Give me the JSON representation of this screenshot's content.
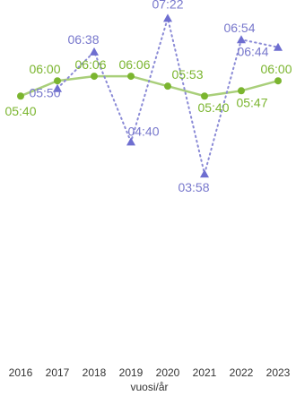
{
  "chart_data": {
    "type": "line",
    "title": "",
    "xlabel": "vuosi/år",
    "ylabel": "",
    "x": [
      "2016",
      "2017",
      "2018",
      "2019",
      "2020",
      "2021",
      "2022",
      "2023"
    ],
    "ylim": [
      "03:30",
      "07:40"
    ],
    "grid": false,
    "series": [
      {
        "style": "solid line with circle markers",
        "color": "#a9cf7a",
        "marker_color": "#7bb52f",
        "label_color": "#7bb52f",
        "values": [
          "05:40",
          "06:00",
          "06:06",
          "06:06",
          "05:53",
          "05:40",
          "05:47",
          "06:00"
        ]
      },
      {
        "style": "dotted line with triangle markers",
        "color": "#8a8ad6",
        "marker_color": "#6e6ed0",
        "label_color": "#7777cc",
        "values": [
          null,
          "05:50",
          "06:38",
          "04:40",
          "07:22",
          "03:58",
          "06:54",
          "06:44"
        ]
      }
    ]
  }
}
